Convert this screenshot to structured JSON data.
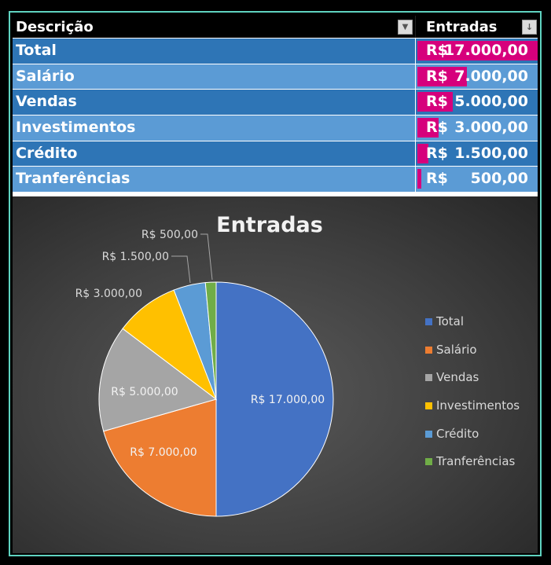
{
  "table": {
    "header": {
      "col1": "Descrição",
      "col2": "Entradas"
    },
    "rows": [
      {
        "label": "Total",
        "currency": "R$",
        "amount": "17.000,00",
        "value": 17000
      },
      {
        "label": "Salário",
        "currency": "R$",
        "amount": "7.000,00",
        "value": 7000
      },
      {
        "label": "Vendas",
        "currency": "R$",
        "amount": "5.000,00",
        "value": 5000
      },
      {
        "label": "Investimentos",
        "currency": "R$",
        "amount": "3.000,00",
        "value": 3000
      },
      {
        "label": "Crédito",
        "currency": "R$",
        "amount": "1.500,00",
        "value": 1500
      },
      {
        "label": "Tranferências",
        "currency": "R$",
        "amount": "500,00",
        "value": 500
      }
    ],
    "bar_color": "#d6007c",
    "row_colors": [
      "#2e75b6",
      "#5b9bd5"
    ]
  },
  "chart_data": {
    "type": "pie",
    "title": "Entradas",
    "categories": [
      "Total",
      "Salário",
      "Vendas",
      "Investimentos",
      "Crédito",
      "Tranferências"
    ],
    "values": [
      17000,
      7000,
      5000,
      3000,
      1500,
      500
    ],
    "data_labels": [
      "R$ 17.000,00",
      "R$ 7.000,00",
      "R$ 5.000,00",
      "R$ 3.000,00",
      "R$ 1.500,00",
      "R$ 500,00"
    ],
    "colors": [
      "#4472c4",
      "#ed7d31",
      "#a5a5a5",
      "#ffc000",
      "#5b9bd5",
      "#70ad47"
    ],
    "legend_position": "right"
  }
}
